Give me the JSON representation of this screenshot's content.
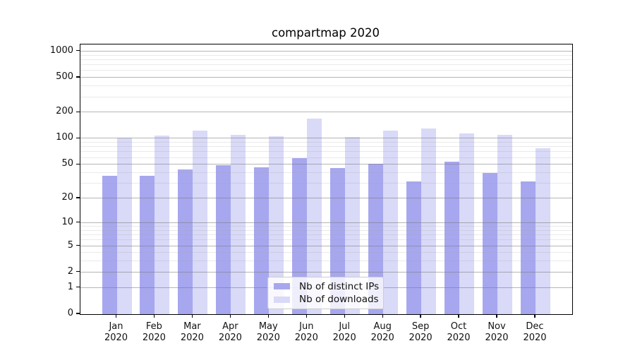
{
  "title": "compartmap 2020",
  "chart_data": {
    "type": "bar",
    "title": "compartmap 2020",
    "categories": [
      "Jan 2020",
      "Feb 2020",
      "Mar 2020",
      "Apr 2020",
      "May 2020",
      "Jun 2020",
      "Jul 2020",
      "Aug 2020",
      "Sep 2020",
      "Oct 2020",
      "Nov 2020",
      "Dec 2020"
    ],
    "series": [
      {
        "name": "Nb of distinct IPs",
        "color": "#a7a7ef",
        "values": [
          37,
          37,
          44,
          49,
          47,
          60,
          46,
          51,
          32,
          54,
          40,
          32
        ]
      },
      {
        "name": "Nb of downloads",
        "color": "#d9d9f8",
        "values": [
          103,
          109,
          124,
          110,
          106,
          170,
          105,
          125,
          132,
          115,
          110,
          78
        ]
      }
    ],
    "xlabel": "",
    "ylabel": "",
    "yscale": "log1p",
    "ylim": [
      0,
      1200
    ],
    "yticks": [
      0,
      1,
      2,
      5,
      10,
      20,
      50,
      100,
      200,
      500,
      1000
    ],
    "minor_yticks": [
      3,
      4,
      6,
      7,
      8,
      9,
      30,
      40,
      60,
      70,
      80,
      90,
      300,
      400,
      600,
      700,
      800,
      900
    ],
    "grid": true,
    "legend_position": "lower-center"
  },
  "colors": {
    "background": "#ffffff",
    "axis": "#000000",
    "grid_major": "#bcbcbc",
    "grid_minor": "#e8e8e8",
    "text": "#111111",
    "legend_border": "#cccccc"
  }
}
